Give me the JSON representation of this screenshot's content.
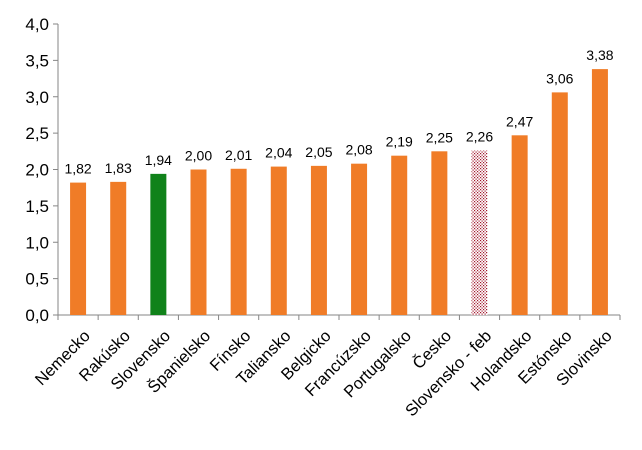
{
  "chart_data": {
    "type": "bar",
    "title": "",
    "xlabel": "",
    "ylabel": "",
    "ylim": [
      0,
      4
    ],
    "y_tick_step": 0.5,
    "y_tick_labels": [
      "0,0",
      "0,5",
      "1,0",
      "1,5",
      "2,0",
      "2,5",
      "3,0",
      "3,5",
      "4,0"
    ],
    "grid": false,
    "legend": "none",
    "categories": [
      "Nemecko",
      "Rakúsko",
      "Slovensko",
      "Španielsko",
      "Fínsko",
      "Taliansko",
      "Belgicko",
      "Francúzsko",
      "Portugalsko",
      "Česko",
      "Slovensko - feb",
      "Holandsko",
      "Estónsko",
      "Slovinsko"
    ],
    "values": [
      1.82,
      1.83,
      1.94,
      2.0,
      2.01,
      2.04,
      2.05,
      2.08,
      2.19,
      2.25,
      2.26,
      2.47,
      3.06,
      3.38
    ],
    "value_labels": [
      "1,82",
      "1,83",
      "1,94",
      "2,00",
      "2,01",
      "2,04",
      "2,05",
      "2,08",
      "2,19",
      "2,25",
      "2,26",
      "2,47",
      "3,06",
      "3,38"
    ],
    "bar_styles": [
      "default",
      "default",
      "highlight",
      "default",
      "default",
      "default",
      "default",
      "default",
      "default",
      "default",
      "dotted",
      "default",
      "default",
      "default"
    ],
    "colors": {
      "default": "#F07C27",
      "highlight": "#10821A",
      "dotted": "#A0152A",
      "axis": "#868686"
    }
  }
}
